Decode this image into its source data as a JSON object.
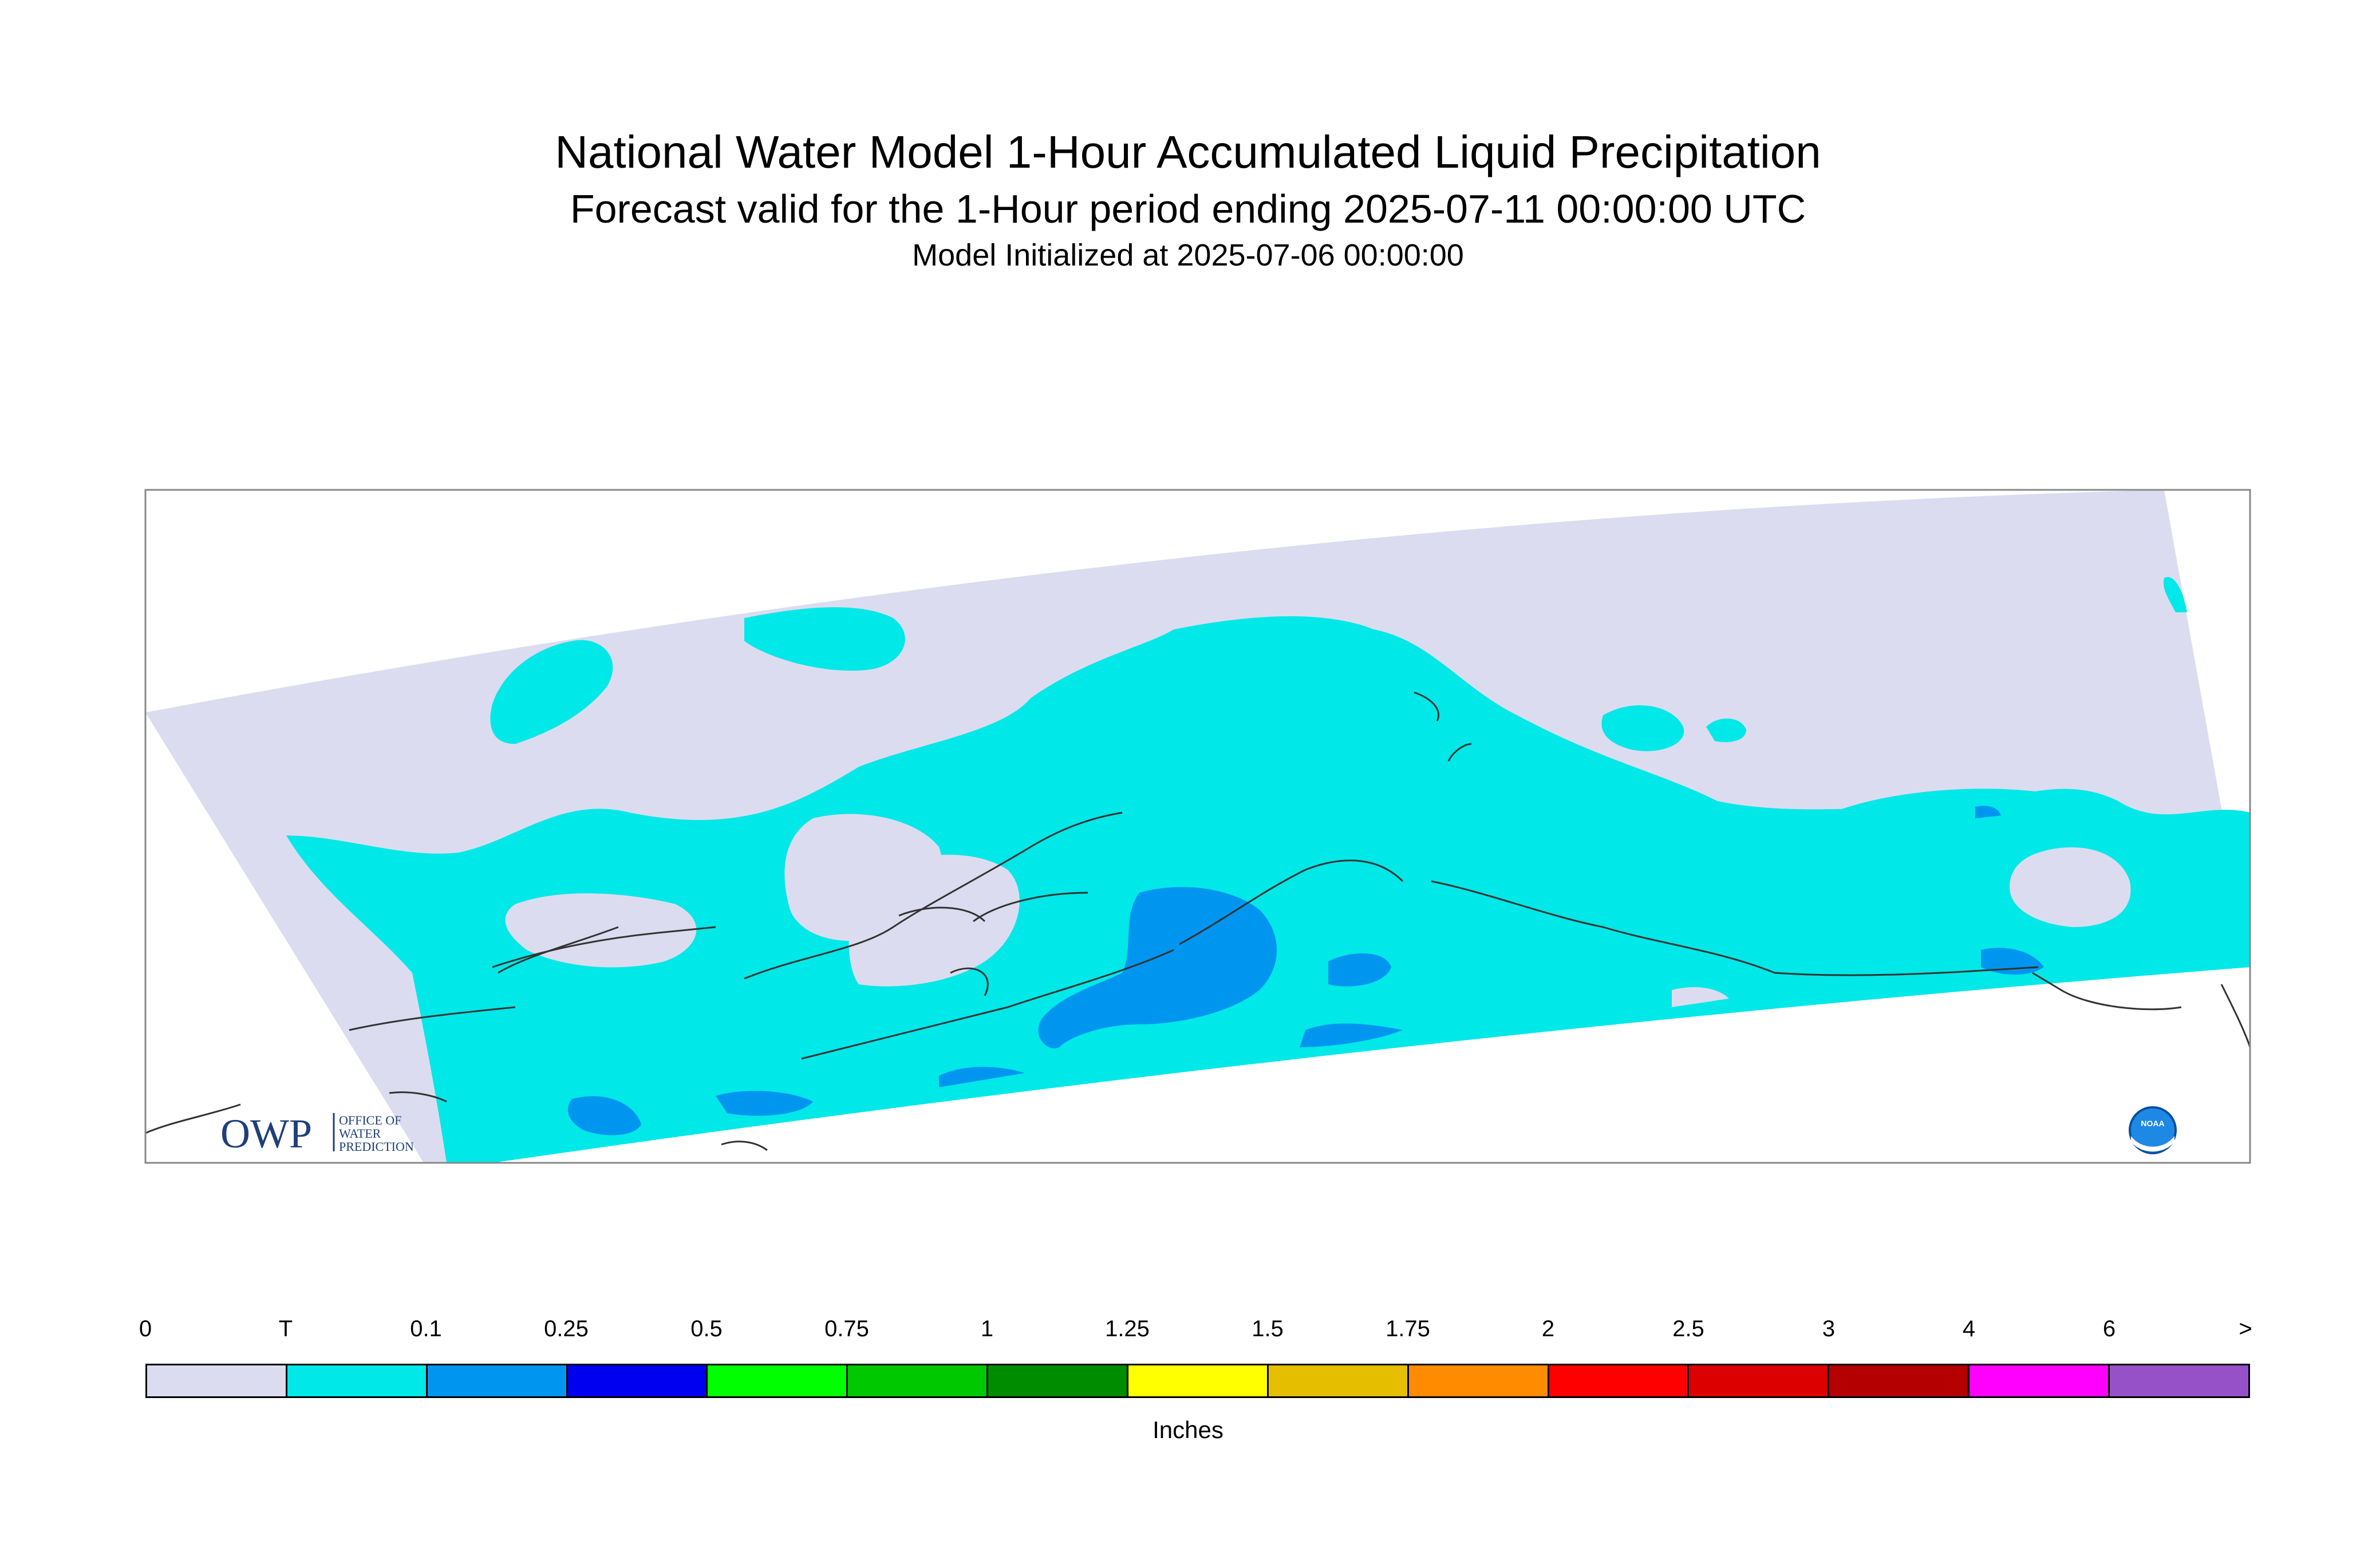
{
  "header": {
    "title": "National Water Model 1-Hour Accumulated Liquid Precipitation",
    "subtitle": "Forecast valid for the 1-Hour period ending 2025-07-11 00:00:00 UTC",
    "init": "Model Initialized at 2025-07-06 00:00:00"
  },
  "logos": {
    "owp_mark": "OWP",
    "owp_line1": "OFFICE OF",
    "owp_line2": "WATER",
    "owp_line3": "PREDICTION",
    "noaa": "NOAA"
  },
  "legend": {
    "ticks": [
      "0",
      "T",
      "0.1",
      "0.25",
      "0.5",
      "0.75",
      "1",
      "1.25",
      "1.5",
      "1.75",
      "2",
      "2.5",
      "3",
      "4",
      "6",
      ">"
    ],
    "colors": [
      "#dcdcf0",
      "#00e8e8",
      "#0096f0",
      "#0000f0",
      "#00ff00",
      "#00c800",
      "#008c00",
      "#ffff00",
      "#e6be00",
      "#ff8c00",
      "#ff0000",
      "#dc0000",
      "#b40000",
      "#ff00ff",
      "#9650c8"
    ],
    "units": "Inches"
  },
  "colors": {
    "no_precip": "#dcdcf0",
    "trace": "#00e8e8",
    "light": "#0096f0"
  }
}
